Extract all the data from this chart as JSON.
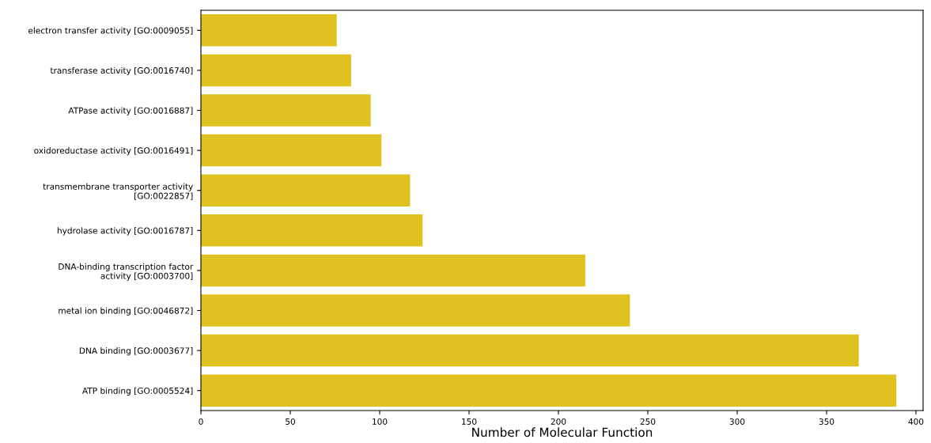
{
  "chart_data": {
    "type": "bar",
    "orientation": "horizontal",
    "xlabel": "Number of Molecular Function",
    "categories": [
      "electron transfer activity [GO:0009055]",
      "transferase activity [GO:0016740]",
      "ATPase activity [GO:0016887]",
      "oxidoreductase activity [GO:0016491]",
      "transmembrane transporter activity\n[GO:0022857]",
      "hydrolase activity [GO:0016787]",
      "DNA-binding transcription factor\nactivity [GO:0003700]",
      "metal ion binding [GO:0046872]",
      "DNA binding [GO:0003677]",
      "ATP binding [GO:0005524]"
    ],
    "values": [
      76,
      84,
      95,
      101,
      117,
      124,
      215,
      240,
      368,
      389
    ],
    "color": "#dfc21f",
    "xlim": [
      0,
      404
    ],
    "xticks": [
      0,
      50,
      100,
      150,
      200,
      250,
      300,
      350,
      400
    ],
    "grid": false,
    "legend": false
  }
}
